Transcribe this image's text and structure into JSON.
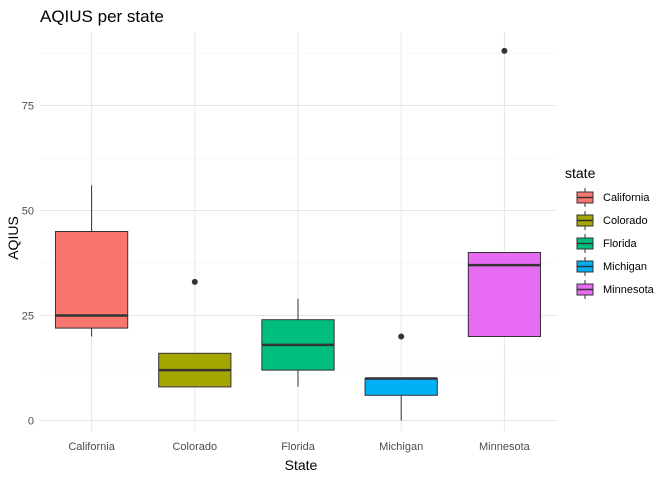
{
  "chart_data": {
    "type": "boxplot",
    "title": "AQIUS per state",
    "xlabel": "State",
    "ylabel": "AQIUS",
    "ylim": [
      -2.5,
      92.5
    ],
    "yticks": [
      "0",
      "25",
      "50",
      "75"
    ],
    "grid": true,
    "legend": {
      "title": "state",
      "placement": "right"
    },
    "categories": [
      "California",
      "Colorado",
      "Florida",
      "Michigan",
      "Minnesota"
    ],
    "boxes": [
      {
        "name": "California",
        "color": "#F8766D",
        "min": 20,
        "q1": 22,
        "median": 25,
        "q3": 45,
        "max": 56,
        "outliers": []
      },
      {
        "name": "Colorado",
        "color": "#A3A500",
        "min": 8,
        "q1": 8,
        "median": 12,
        "q3": 16,
        "max": 16,
        "outliers": [
          33
        ]
      },
      {
        "name": "Florida",
        "color": "#00BF7D",
        "min": 8,
        "q1": 12,
        "median": 18,
        "q3": 24,
        "max": 29,
        "outliers": []
      },
      {
        "name": "Michigan",
        "color": "#00B0F6",
        "min": 0,
        "q1": 6,
        "median": 10,
        "q3": 10,
        "max": 10,
        "outliers": [
          20
        ]
      },
      {
        "name": "Minnesota",
        "color": "#E76BF3",
        "min": 20,
        "q1": 20,
        "median": 37,
        "q3": 40,
        "max": 40,
        "outliers": [
          88
        ]
      }
    ]
  }
}
